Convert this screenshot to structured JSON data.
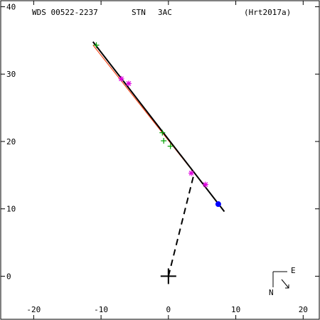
{
  "header": {
    "left": "WDS 00522-2237",
    "middle_a": "STN",
    "middle_b": "3AC",
    "right": "(Hrt2017a)"
  },
  "chart_data": {
    "type": "scatter",
    "title": "",
    "xlabel": "",
    "ylabel": "",
    "xlim": [
      -25,
      22.5
    ],
    "ylim": [
      -6.5,
      41
    ],
    "x_ticks": [
      -20,
      -10,
      0,
      10,
      20
    ],
    "y_ticks": [
      0,
      10,
      20,
      30,
      40
    ],
    "x_tick_labels": [
      "-20",
      "-10",
      "0",
      "10",
      "20"
    ],
    "y_tick_labels": [
      "0",
      "10",
      "20",
      "30",
      "40"
    ],
    "grid": false,
    "legend": "none",
    "orbit_line": {
      "points": [
        [
          -11.2,
          34.8
        ],
        [
          8.3,
          9.6
        ]
      ],
      "color": "#000000"
    },
    "orbit_line_secondary": {
      "points": [
        [
          -11.2,
          34.3
        ],
        [
          8.2,
          9.8
        ]
      ],
      "color": "#ff3300"
    },
    "connector": {
      "from": [
        0,
        0
      ],
      "to": [
        3.7,
        14.8
      ],
      "style": "dashed"
    },
    "primary": {
      "x": 0,
      "y": 0
    },
    "series": [
      {
        "marker": "plus",
        "color": "#00a000",
        "points": [
          [
            -10.7,
            34.3
          ],
          [
            -0.9,
            21.3
          ],
          [
            -0.7,
            20.1
          ],
          [
            0.3,
            19.3
          ]
        ]
      },
      {
        "marker": "asterisk",
        "color": "#e000e0",
        "points": [
          [
            -7.0,
            29.3
          ],
          [
            -5.9,
            28.6
          ],
          [
            3.4,
            15.3
          ],
          [
            5.5,
            13.6
          ]
        ]
      },
      {
        "marker": "dot",
        "color": "#0000ff",
        "points": [
          [
            7.4,
            10.7
          ]
        ]
      }
    ],
    "compass": {
      "n_label": "N",
      "e_label": "E"
    }
  }
}
